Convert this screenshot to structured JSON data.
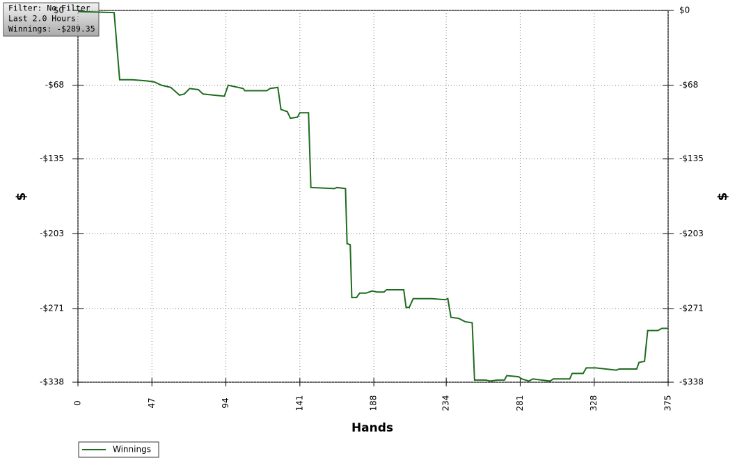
{
  "chart_data": {
    "type": "line",
    "info": [
      "Filter: No Filter",
      "Last 2.0 Hours",
      "Winnings: -$289.35"
    ],
    "x_label": "Hands",
    "y_label": "$",
    "y2_label": "$",
    "x": [
      0,
      23,
      26.5,
      34.5,
      43,
      48.5,
      53,
      59,
      64.5,
      67.5,
      71,
      76.5,
      79.5,
      93,
      95.5,
      105,
      106,
      120,
      122,
      127,
      129,
      133,
      135,
      139.5,
      141,
      146.5,
      148,
      163,
      164.5,
      170,
      171,
      173,
      174,
      177,
      179,
      183,
      187,
      190,
      194.5,
      196,
      207,
      208.5,
      210.5,
      213,
      225,
      233.5,
      235,
      237,
      242,
      246,
      250.5,
      252,
      259,
      262,
      266.5,
      271,
      272.5,
      280,
      282,
      286.5,
      289,
      300,
      302,
      312.5,
      314,
      321,
      323,
      329,
      342,
      344,
      355,
      356.5,
      360,
      362,
      368.5,
      371,
      375
    ],
    "series": [
      {
        "name": "Winnings",
        "color": "#1e6b1e",
        "values": [
          -1,
          -2,
          -63,
          -63,
          -64,
          -65,
          -68,
          -70,
          -77,
          -76,
          -71,
          -72,
          -76,
          -78,
          -68,
          -71,
          -73,
          -73,
          -71,
          -70,
          -90,
          -92,
          -98,
          -97,
          -93,
          -93,
          -161,
          -162,
          -161,
          -162,
          -212,
          -213,
          -261,
          -261,
          -257,
          -257,
          -255,
          -256,
          -256,
          -254,
          -254,
          -270,
          -270,
          -262,
          -262,
          -263,
          -262,
          -279,
          -280,
          -283,
          -284,
          -336,
          -336,
          -337,
          -336,
          -336,
          -332,
          -333,
          -335,
          -337,
          -335,
          -337,
          -335,
          -335,
          -330,
          -330,
          -325,
          -325,
          -327,
          -326,
          -326,
          -320,
          -319,
          -291,
          -291,
          -289,
          -289
        ]
      }
    ],
    "xlim": [
      0,
      375
    ],
    "xticks": [
      0,
      47,
      94,
      141,
      188,
      234,
      281,
      328,
      375
    ],
    "ylim": [
      -338,
      0
    ],
    "yticks": [
      {
        "value": 0,
        "label": "$0"
      },
      {
        "value": -68,
        "label": "-$68"
      },
      {
        "value": -135,
        "label": "-$135"
      },
      {
        "value": -203,
        "label": "-$203"
      },
      {
        "value": -271,
        "label": "-$271"
      },
      {
        "value": -338,
        "label": "-$338"
      }
    ],
    "grid": true
  }
}
